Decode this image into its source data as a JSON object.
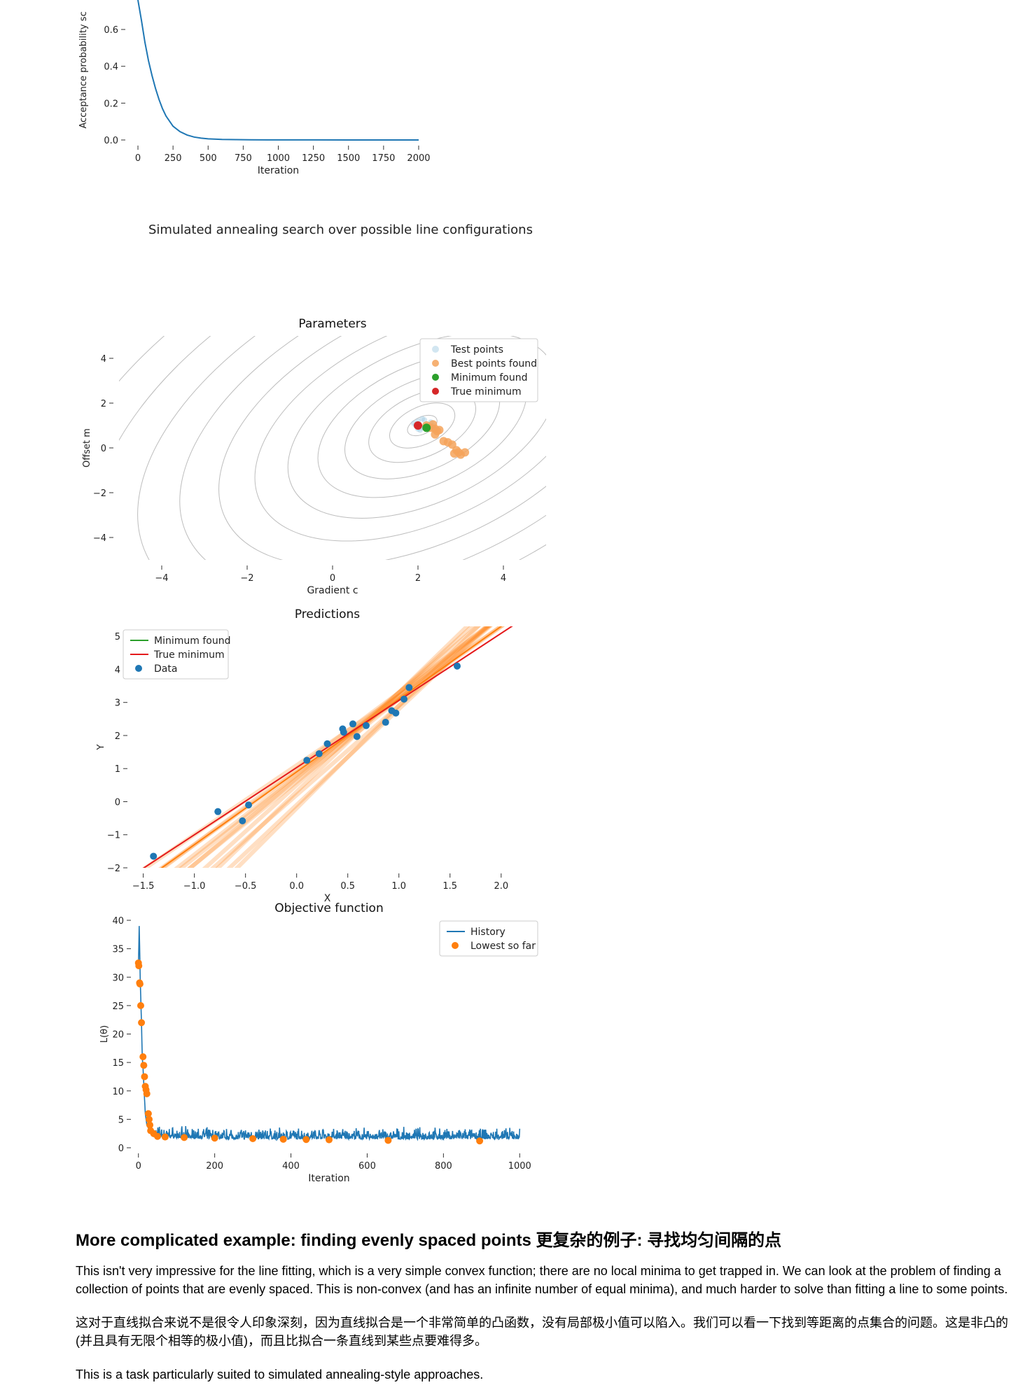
{
  "figure_caption": "Simulated annealing search over possible line configurations",
  "chart_data": [
    {
      "type": "line",
      "title": "",
      "xlabel": "Iteration",
      "ylabel": "Acceptance probability sc",
      "xlim": [
        -50,
        2050
      ],
      "ylim": [
        0,
        0.76
      ],
      "xticks": [
        0,
        250,
        500,
        750,
        1000,
        1250,
        1500,
        1750,
        2000
      ],
      "yticks": [
        0.0,
        0.2,
        0.4,
        0.6
      ],
      "series": [
        {
          "values": [
            [
              0,
              0.76
            ],
            [
              25,
              0.65
            ],
            [
              50,
              0.53
            ],
            [
              75,
              0.43
            ],
            [
              100,
              0.35
            ],
            [
              125,
              0.28
            ],
            [
              150,
              0.22
            ],
            [
              175,
              0.17
            ],
            [
              200,
              0.13
            ],
            [
              250,
              0.075
            ],
            [
              300,
              0.045
            ],
            [
              350,
              0.027
            ],
            [
              400,
              0.016
            ],
            [
              450,
              0.01
            ],
            [
              500,
              0.006
            ],
            [
              600,
              0.003
            ],
            [
              700,
              0.002
            ],
            [
              800,
              0.001
            ],
            [
              1000,
              0.0005
            ],
            [
              1250,
              0.0002
            ],
            [
              1500,
              0.0001
            ],
            [
              1750,
              5e-05
            ],
            [
              2000,
              2e-05
            ]
          ]
        }
      ]
    },
    {
      "type": "scatter",
      "title": "Parameters",
      "xlabel": "Gradient c",
      "ylabel": "Offset m",
      "xlim": [
        -5,
        5
      ],
      "ylim": [
        -5,
        5
      ],
      "xticks": [
        -4,
        -2,
        0,
        2,
        4
      ],
      "yticks": [
        -4,
        -2,
        0,
        2,
        4
      ],
      "legend_position": "top-right",
      "contours": {
        "center": [
          2.1,
          1.0
        ],
        "count": 18
      },
      "series": [
        {
          "name": "Test points",
          "color": "#a6cee3",
          "points": [
            [
              1.9,
              1.1
            ],
            [
              2.0,
              1.2
            ],
            [
              2.1,
              0.9
            ],
            [
              2.2,
              1.05
            ],
            [
              2.3,
              1.15
            ],
            [
              2.0,
              0.85
            ],
            [
              2.15,
              1.25
            ],
            [
              2.25,
              0.95
            ],
            [
              1.95,
              1.0
            ],
            [
              2.35,
              1.0
            ],
            [
              2.1,
              1.3
            ],
            [
              2.05,
              0.8
            ]
          ]
        },
        {
          "name": "Best points found",
          "color": "#f4a35a",
          "points": [
            [
              2.2,
              1.0
            ],
            [
              2.3,
              0.9
            ],
            [
              2.4,
              0.85
            ],
            [
              2.5,
              0.8
            ],
            [
              2.4,
              0.6
            ],
            [
              2.6,
              0.3
            ],
            [
              2.7,
              0.25
            ],
            [
              2.8,
              0.15
            ],
            [
              2.9,
              -0.1
            ],
            [
              2.95,
              -0.2
            ],
            [
              3.0,
              -0.3
            ],
            [
              3.1,
              -0.2
            ],
            [
              2.85,
              -0.25
            ],
            [
              2.45,
              0.75
            ],
            [
              2.35,
              1.05
            ]
          ]
        },
        {
          "name": "Minimum found",
          "color": "#2ca02c",
          "points": [
            [
              2.2,
              0.9
            ]
          ]
        },
        {
          "name": "True minimum",
          "color": "#d62728",
          "points": [
            [
              2.0,
              1.0
            ]
          ]
        }
      ]
    },
    {
      "type": "line",
      "title": "Predictions",
      "xlabel": "X",
      "ylabel": "Y",
      "xlim": [
        -1.6,
        2.2
      ],
      "ylim": [
        -2.0,
        5.3
      ],
      "xticks": [
        -1.5,
        -1.0,
        -0.5,
        0.0,
        0.5,
        1.0,
        1.5,
        2.0
      ],
      "yticks": [
        -2,
        -1,
        0,
        1,
        2,
        3,
        4,
        5
      ],
      "legend_position": "top-left",
      "series": [
        {
          "name": "Minimum found",
          "color": "#2ca02c",
          "slope": 2.2,
          "intercept": 0.9
        },
        {
          "name": "True minimum",
          "color": "#e41a1c",
          "slope": 2.03,
          "intercept": 1.03
        },
        {
          "name": "Data",
          "color": "#1f77b4",
          "points": [
            [
              -1.4,
              -1.65
            ],
            [
              -0.77,
              -0.3
            ],
            [
              -0.53,
              -0.58
            ],
            [
              0.3,
              1.75
            ],
            [
              0.45,
              2.2
            ],
            [
              0.46,
              2.1
            ],
            [
              0.55,
              2.35
            ],
            [
              0.59,
              1.97
            ],
            [
              0.87,
              2.4
            ],
            [
              0.93,
              2.75
            ],
            [
              0.97,
              2.68
            ],
            [
              1.1,
              3.45
            ],
            [
              1.57,
              4.1
            ],
            [
              -0.47,
              -0.1
            ],
            [
              0.1,
              1.25
            ],
            [
              0.22,
              1.45
            ],
            [
              0.68,
              2.3
            ],
            [
              1.05,
              3.1
            ]
          ]
        }
      ],
      "candidate_lines": [
        [
          2.2,
          0.9
        ],
        [
          2.4,
          0.8
        ],
        [
          2.6,
          0.7
        ],
        [
          2.8,
          0.5
        ],
        [
          3.0,
          0.3
        ],
        [
          2.5,
          0.6
        ],
        [
          2.3,
          1.0
        ],
        [
          2.1,
          1.1
        ],
        [
          2.7,
          0.2
        ],
        [
          2.9,
          -0.1
        ],
        [
          3.1,
          -0.2
        ],
        [
          2.45,
          0.75
        ]
      ]
    },
    {
      "type": "line",
      "title": "Objective function",
      "xlabel": "Iteration",
      "ylabel": "L(θ)",
      "xlim": [
        -5,
        1005
      ],
      "ylim": [
        0,
        40
      ],
      "xticks": [
        0,
        200,
        400,
        600,
        800,
        1000
      ],
      "yticks": [
        0,
        5,
        10,
        15,
        20,
        25,
        30,
        35,
        40
      ],
      "legend_position": "top-right",
      "series": [
        {
          "name": "History",
          "color": "#1f77b4",
          "note_points": [
            [
              0,
              32
            ],
            [
              2,
              39
            ],
            [
              5,
              29
            ],
            [
              8,
              22
            ],
            [
              10,
              16
            ],
            [
              12,
              14
            ],
            [
              15,
              10
            ],
            [
              18,
              6
            ],
            [
              22,
              4
            ],
            [
              30,
              3
            ],
            [
              40,
              2.5
            ],
            [
              60,
              2.2
            ],
            [
              100,
              2.1
            ],
            [
              160,
              2.0
            ],
            [
              200,
              1.9
            ],
            [
              400,
              1.9
            ],
            [
              500,
              2.0
            ],
            [
              600,
              1.9
            ],
            [
              800,
              1.9
            ],
            [
              1000,
              1.9
            ]
          ]
        },
        {
          "name": "Lowest so far",
          "color": "#ff7f0e",
          "points": [
            [
              0,
              32.5
            ],
            [
              1,
              32
            ],
            [
              3,
              29
            ],
            [
              4,
              28.8
            ],
            [
              6,
              25
            ],
            [
              8,
              22
            ],
            [
              12,
              16
            ],
            [
              14,
              14.5
            ],
            [
              16,
              12.5
            ],
            [
              18,
              10.8
            ],
            [
              20,
              10.2
            ],
            [
              22,
              9.5
            ],
            [
              26,
              6
            ],
            [
              28,
              5
            ],
            [
              30,
              4
            ],
            [
              32,
              3
            ],
            [
              40,
              2.5
            ],
            [
              50,
              2.0
            ],
            [
              70,
              1.9
            ],
            [
              120,
              1.8
            ],
            [
              200,
              1.7
            ],
            [
              300,
              1.6
            ],
            [
              380,
              1.5
            ],
            [
              440,
              1.45
            ],
            [
              500,
              1.4
            ],
            [
              655,
              1.3
            ],
            [
              895,
              1.2
            ]
          ]
        }
      ]
    }
  ],
  "section": {
    "heading": "More complicated example: finding evenly spaced points 更复杂的例子: 寻找均匀间隔的点",
    "p1": "This isn't very impressive for the line fitting, which is a very simple convex function; there are no local minima to get trapped in. We can look at the problem of finding a collection of points that are evenly spaced. This is non-convex (and has an infinite number of equal minima), and much harder to solve than fitting a line to some points.",
    "p2": "这对于直线拟合来说不是很令人印象深刻，因为直线拟合是一个非常简单的凸函数，没有局部极小值可以陷入。我们可以看一下找到等距离的点集合的问题。这是非凸的(并且具有无限个相等的极小值)，而且比拟合一条直线到某些点要难得多。",
    "p3": "This is a task particularly suited to simulated annealing-style approaches."
  }
}
